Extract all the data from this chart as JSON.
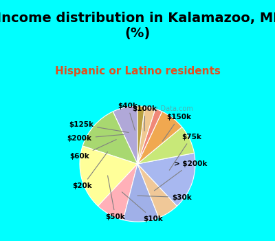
{
  "title": "Income distribution in Kalamazoo, MI\n(%)",
  "subtitle": "Hispanic or Latino residents",
  "background_top": "#00FFFF",
  "background_chart": "#e8f5e9",
  "labels": [
    "$100k",
    "$150k",
    "$75k",
    "> $200k",
    "$30k",
    "$10k",
    "$50k",
    "$20k",
    "$60k",
    "$200k",
    "$125k",
    "$40k"
  ],
  "values": [
    7,
    13,
    18,
    8,
    10,
    6,
    16,
    8,
    7,
    2,
    3,
    2
  ],
  "colors": [
    "#b0a8d8",
    "#a8d870",
    "#ffff99",
    "#ffb0b8",
    "#a0b0e8",
    "#f0c898",
    "#a8b8f0",
    "#c8e878",
    "#f0a850",
    "#f08878",
    "#f0c890",
    "#b8a040"
  ],
  "watermark": "City-Data.com",
  "title_fontsize": 14,
  "subtitle_fontsize": 11,
  "subtitle_color": "#e05020"
}
